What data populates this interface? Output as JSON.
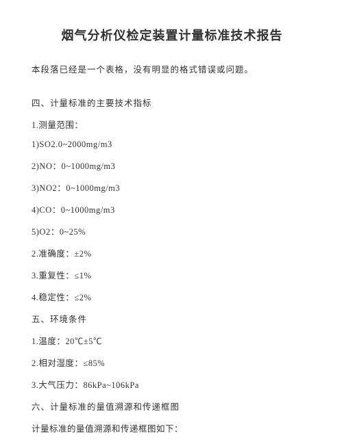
{
  "title": "烟气分析仪检定装置计量标准技术报告",
  "note": "本段落已经是一个表格，没有明显的格式错误或问题。",
  "section4": {
    "heading": "四、计量标准的主要技术指标",
    "item1_label": "1.测量范围：",
    "range1": "1)SO2.0~2000mg/m3",
    "range2": "2)NO：0~1000mg/m3",
    "range3": "3)NO2：0~1000mg/m3",
    "range4": "4)CO：0~1000mg/m3",
    "range5": "5)O2：0~25%",
    "item2": "2.准确度：±2%",
    "item3": "3.重复性：≤1%",
    "item4": "4.稳定性：≤2%"
  },
  "section5": {
    "heading": "五、环境条件",
    "item1": "1.温度：20℃±5℃",
    "item2": "2.相对湿度：≤85%",
    "item3": "3.大气压力：86kPa~106kPa"
  },
  "section6": {
    "heading": "六、计量标准的量值溯源和传递框图",
    "item1": "计量标准的量值溯源和传递框图如下："
  }
}
